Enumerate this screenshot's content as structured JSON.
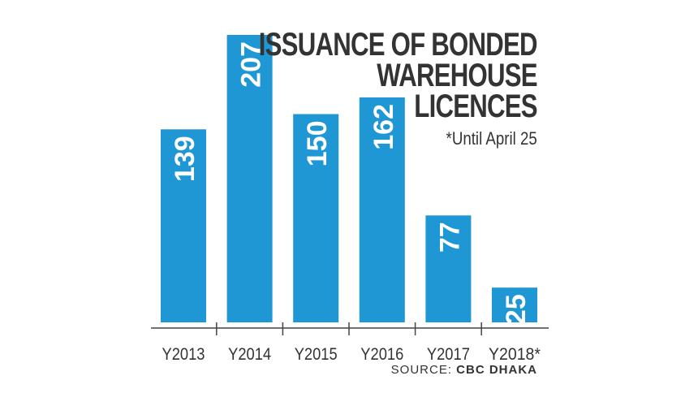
{
  "chart_data": {
    "type": "bar",
    "title_lines": [
      "ISSUANCE OF BONDED",
      "WAREHOUSE",
      "LICENCES"
    ],
    "note": "*Until April 25",
    "categories": [
      "Y2013",
      "Y2014",
      "Y2015",
      "Y2016",
      "Y2017",
      "Y2018*"
    ],
    "values": [
      139,
      207,
      150,
      162,
      77,
      25
    ],
    "data_labels": [
      "139",
      "207",
      "150",
      "162",
      "77",
      "25"
    ],
    "ylim": [
      0,
      207
    ],
    "grid": false,
    "legend": "none",
    "bar_color": "#1f97d4",
    "label_color": "#ffffff",
    "axis_color": "#444444"
  },
  "source": {
    "prefix": "SOURCE:",
    "name": "CBC DHAKA"
  }
}
